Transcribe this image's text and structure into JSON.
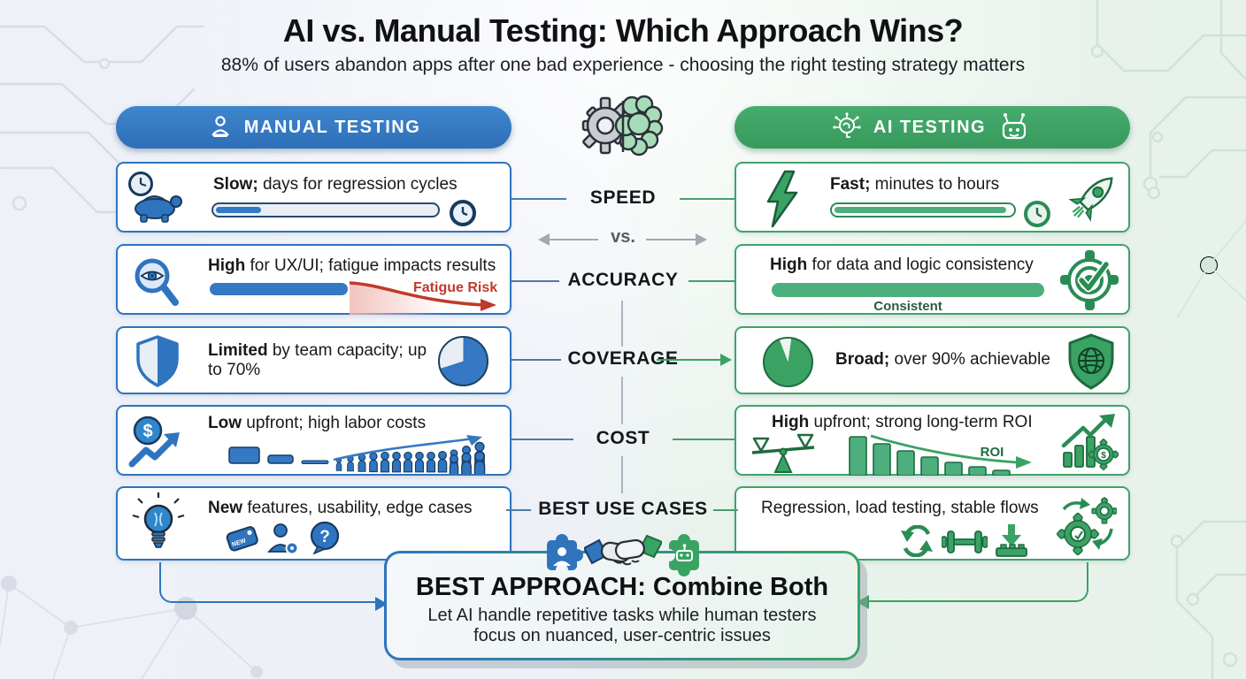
{
  "page": {
    "title": "AI vs. Manual Testing: Which Approach Wins?",
    "subtitle": "88% of users abandon apps after one bad experience - choosing the right testing strategy matters"
  },
  "manual_column": {
    "header": "MANUAL TESTING",
    "speed": {
      "lead": "Slow;",
      "rest": " days for regression cycles",
      "bar_pct": 20
    },
    "accuracy": {
      "lead": "High",
      "rest": " for UX/UI; fatigue impacts results",
      "warning": "Fatigue Risk"
    },
    "coverage": {
      "lead": "Limited",
      "rest": " by team capacity; up to 70%",
      "pie_pct": 70
    },
    "cost": {
      "lead": "Low",
      "rest": " upfront; high labor costs"
    },
    "use_cases": {
      "lead": "New",
      "rest": " features, usability, edge cases",
      "tag_text": "NEW"
    }
  },
  "ai_column": {
    "header": "AI TESTING",
    "speed": {
      "lead": "Fast;",
      "rest": " minutes to hours",
      "bar_pct": 94
    },
    "accuracy": {
      "lead": "High",
      "rest": " for data and logic consistency",
      "caption": "Consistent"
    },
    "coverage": {
      "lead": "Broad;",
      "rest": " over 90% achievable",
      "pie_pct": 92
    },
    "cost": {
      "lead": "High",
      "rest": " upfront; strong long-term ROI",
      "roi_label": "ROI"
    },
    "use_cases": {
      "text": "Regression, load testing, stable flows"
    }
  },
  "center": {
    "speed": "SPEED",
    "vs": "vs.",
    "accuracy": "ACCURACY",
    "coverage": "COVERAGE",
    "cost": "COST",
    "use_cases": "BEST USE CASES"
  },
  "footer": {
    "title": "BEST APPROACH: Combine Both",
    "body": "Let AI handle repetitive tasks while human testers focus on nuanced, user-centric issues"
  },
  "colors": {
    "manual_blue": "#2e74bd",
    "ai_green": "#3aa364",
    "risk_red": "#c0392b"
  }
}
